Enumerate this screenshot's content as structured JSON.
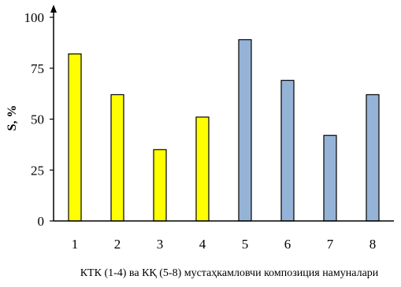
{
  "chart_data": {
    "type": "bar",
    "categories": [
      "1",
      "2",
      "3",
      "4",
      "5",
      "6",
      "7",
      "8"
    ],
    "values": [
      82,
      62,
      35,
      51,
      89,
      69,
      42,
      62
    ],
    "bar_colors": [
      "#ffff00",
      "#ffff00",
      "#ffff00",
      "#ffff00",
      "#95b3d7",
      "#95b3d7",
      "#95b3d7",
      "#95b3d7"
    ],
    "bar_outline": "#000000",
    "ylim": [
      0,
      100
    ],
    "yticks": [
      "0",
      "25",
      "50",
      "75",
      "100"
    ],
    "ylabel": "S, %",
    "xlabel": "КТК (1-4) ва КҚ (5-8) мустаҳкамловчи композиция намуналари",
    "title": "",
    "grid": false,
    "legend": false
  }
}
